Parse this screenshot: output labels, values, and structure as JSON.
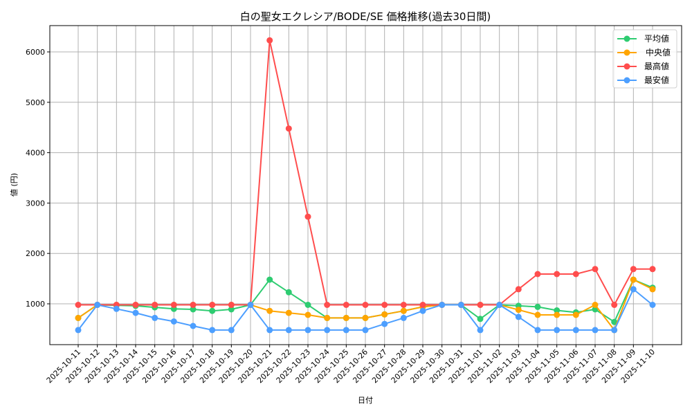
{
  "chart_data": {
    "type": "line",
    "title": "白の聖女エクレシア/BODE/SE 価格推移(過去30日間)",
    "xlabel": "日付",
    "ylabel": "値 (円)",
    "ylim": [
      160,
      6520
    ],
    "yticks": [
      1000,
      2000,
      3000,
      4000,
      5000,
      6000
    ],
    "grid": true,
    "legend_position": "upper right",
    "categories": [
      "2025-10-11",
      "2025-10-12",
      "2025-10-13",
      "2025-10-14",
      "2025-10-15",
      "2025-10-16",
      "2025-10-17",
      "2025-10-18",
      "2025-10-19",
      "2025-10-20",
      "2025-10-21",
      "2025-10-22",
      "2025-10-23",
      "2025-10-24",
      "2025-10-25",
      "2025-10-26",
      "2025-10-27",
      "2025-10-28",
      "2025-10-29",
      "2025-10-30",
      "2025-10-31",
      "2025-11-01",
      "2025-11-02",
      "2025-11-03",
      "2025-11-04",
      "2025-11-05",
      "2025-11-06",
      "2025-11-07",
      "2025-11-08",
      "2025-11-09",
      "2025-11-10"
    ],
    "series": [
      {
        "name": "平均値",
        "color": "#2ecc71",
        "values": [
          720,
          980,
          970,
          960,
          930,
          900,
          890,
          860,
          890,
          980,
          1480,
          1230,
          980,
          720,
          720,
          720,
          790,
          860,
          940,
          980,
          980,
          700,
          980,
          960,
          940,
          870,
          830,
          890,
          640,
          1480,
          1320
        ]
      },
      {
        "name": "中央値",
        "color": "#ffa500",
        "values": [
          720,
          980,
          980,
          980,
          980,
          980,
          980,
          980,
          980,
          980,
          860,
          820,
          780,
          720,
          720,
          720,
          790,
          860,
          940,
          980,
          980,
          980,
          980,
          880,
          780,
          780,
          780,
          980,
          480,
          1480,
          1290
        ]
      },
      {
        "name": "最高値",
        "color": "#ff4d4d",
        "values": [
          980,
          980,
          980,
          980,
          980,
          980,
          980,
          980,
          980,
          980,
          6230,
          4480,
          2730,
          980,
          980,
          980,
          980,
          980,
          980,
          980,
          980,
          980,
          980,
          1290,
          1590,
          1590,
          1590,
          1690,
          980,
          1690,
          1690
        ]
      },
      {
        "name": "最安値",
        "color": "#4d9fff",
        "values": [
          480,
          980,
          900,
          820,
          720,
          650,
          560,
          480,
          480,
          980,
          480,
          480,
          480,
          480,
          480,
          480,
          600,
          720,
          860,
          980,
          980,
          480,
          980,
          740,
          480,
          480,
          480,
          480,
          480,
          1290,
          980
        ]
      }
    ]
  },
  "legend": {
    "items": [
      {
        "label": "平均値",
        "color": "#2ecc71"
      },
      {
        "label": "中央値",
        "color": "#ffa500"
      },
      {
        "label": "最高値",
        "color": "#ff4d4d"
      },
      {
        "label": "最安値",
        "color": "#4d9fff"
      }
    ]
  }
}
